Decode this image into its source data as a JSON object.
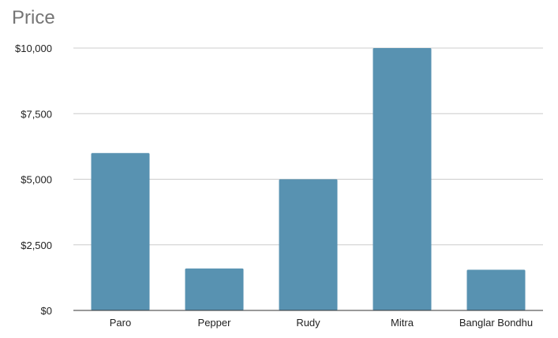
{
  "chart_data": {
    "type": "bar",
    "title": "Price",
    "xlabel": "",
    "ylabel": "",
    "categories": [
      "Paro",
      "Pepper",
      "Rudy",
      "Mitra",
      "Banglar Bondhu"
    ],
    "values": [
      6000,
      1600,
      5000,
      10000,
      1550
    ],
    "ylim": [
      0,
      10000
    ],
    "yticks": [
      0,
      2500,
      5000,
      7500,
      10000
    ],
    "ytick_labels": [
      "$0",
      "$2,500",
      "$5,000",
      "$7,500",
      "$10,000"
    ],
    "grid": true,
    "legend": "none",
    "bar_color": "#5892b1",
    "grid_color": "#cccccc",
    "axis_color": "#333333"
  }
}
